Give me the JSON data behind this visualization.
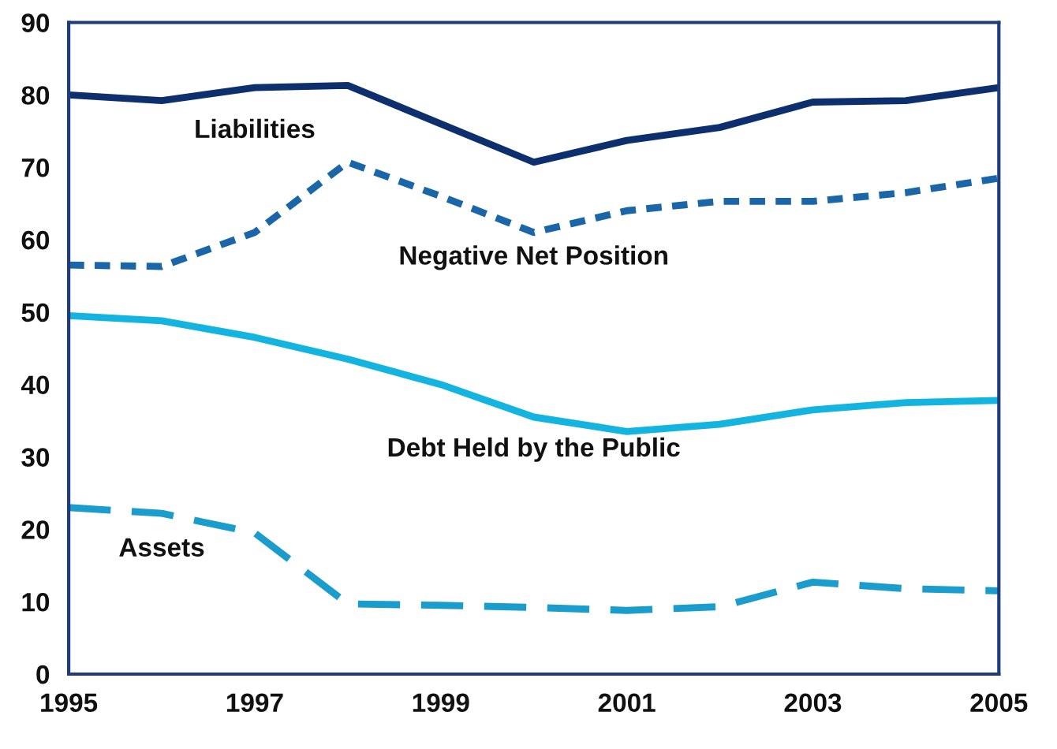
{
  "chart_data": {
    "type": "line",
    "x": [
      1995,
      1996,
      1997,
      1998,
      1999,
      2000,
      2001,
      2002,
      2003,
      2004,
      2005
    ],
    "xlim": [
      1995,
      2005
    ],
    "xticks": [
      1995,
      1997,
      1999,
      2001,
      2003,
      2005
    ],
    "ylim": [
      0,
      90
    ],
    "yticks": [
      0,
      10,
      20,
      30,
      40,
      50,
      60,
      70,
      80,
      90
    ],
    "grid": false,
    "legend": false,
    "series": [
      {
        "name": "Liabilities",
        "color": "#0d2f6e",
        "line_style": "solid",
        "values": [
          80,
          79.2,
          81,
          81.3,
          76,
          70.7,
          73.7,
          75.5,
          79,
          79.2,
          81
        ]
      },
      {
        "name": "Negative Net Position",
        "color": "#1a66a8",
        "line_style": "dotted",
        "values": [
          56.5,
          56.3,
          61,
          70.7,
          66,
          61,
          64,
          65.3,
          65.3,
          66.5,
          68.5
        ]
      },
      {
        "name": "Debt Held by the Public",
        "color": "#14b4e0",
        "line_style": "solid",
        "values": [
          49.5,
          48.8,
          46.5,
          43.5,
          40,
          35.5,
          33.5,
          34.5,
          36.5,
          37.5,
          37.8
        ]
      },
      {
        "name": "Assets",
        "color": "#1a9ccd",
        "line_style": "dashed",
        "values": [
          23,
          22.2,
          19.5,
          9.7,
          9.5,
          9.2,
          8.8,
          9.3,
          12.7,
          11.8,
          11.5
        ]
      }
    ]
  }
}
